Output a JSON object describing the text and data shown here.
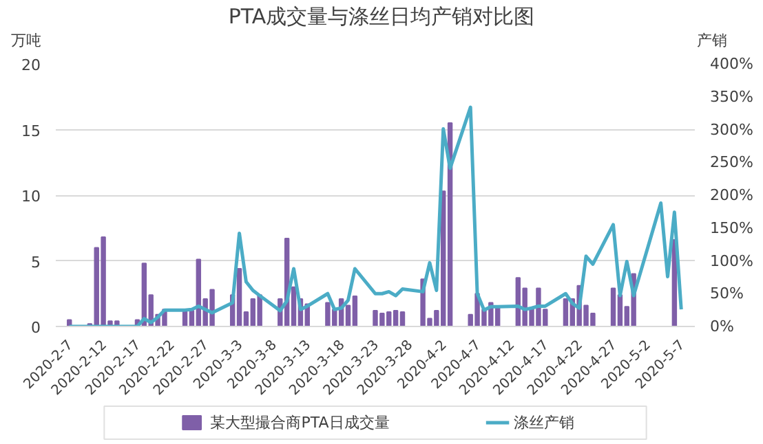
{
  "chart_data": {
    "type": "bar",
    "title": "PTA成交量与涤丝日均产销对比图",
    "ylabel": "万吨",
    "y2label": "产销",
    "x": [
      "2020-02-07",
      "2020-02-10",
      "2020-02-11",
      "2020-02-12",
      "2020-02-13",
      "2020-02-14",
      "2020-02-17",
      "2020-02-18",
      "2020-02-19",
      "2020-02-20",
      "2020-02-21",
      "2020-02-24",
      "2020-02-25",
      "2020-02-26",
      "2020-02-27",
      "2020-02-28",
      "2020-03-02",
      "2020-03-03",
      "2020-03-04",
      "2020-03-05",
      "2020-03-06",
      "2020-03-09",
      "2020-03-10",
      "2020-03-11",
      "2020-03-12",
      "2020-03-13",
      "2020-03-16",
      "2020-03-17",
      "2020-03-18",
      "2020-03-19",
      "2020-03-20",
      "2020-03-23",
      "2020-03-24",
      "2020-03-25",
      "2020-03-26",
      "2020-03-27",
      "2020-03-30",
      "2020-03-31",
      "2020-04-01",
      "2020-04-02",
      "2020-04-03",
      "2020-04-06",
      "2020-04-07",
      "2020-04-08",
      "2020-04-09",
      "2020-04-10",
      "2020-04-13",
      "2020-04-14",
      "2020-04-15",
      "2020-04-16",
      "2020-04-17",
      "2020-04-20",
      "2020-04-21",
      "2020-04-22",
      "2020-04-23",
      "2020-04-24",
      "2020-04-27",
      "2020-04-28",
      "2020-04-29",
      "2020-04-30",
      "2020-05-06"
    ],
    "series": [
      {
        "name": "某大型撮合商PTA日成交量",
        "color": "#7f5fa8",
        "values": [
          0.5,
          0.2,
          6.0,
          6.8,
          0.4,
          0.4,
          0.5,
          4.8,
          2.4,
          0.9,
          1.3,
          1.2,
          1.2,
          5.1,
          2.1,
          2.8,
          2.4,
          4.4,
          1.1,
          2.1,
          2.4,
          2.1,
          6.7,
          3.0,
          2.1,
          1.7,
          1.8,
          1.3,
          2.1,
          1.6,
          2.3,
          1.2,
          1.0,
          1.1,
          1.2,
          1.1,
          3.6,
          0.6,
          1.2,
          10.3,
          15.5,
          0.9,
          2.5,
          1.3,
          1.8,
          1.5,
          3.7,
          2.9,
          1.4,
          2.9,
          1.3,
          2.1,
          2.1,
          3.1,
          1.6,
          1.0,
          2.9,
          2.4,
          1.5,
          4.0,
          6.6
        ]
      },
      {
        "name": "涤丝产销",
        "type": "line",
        "axis": "y2",
        "color": "#4bacc6",
        "x": [
          "2020-02-07",
          "2020-02-10",
          "2020-02-11",
          "2020-02-12",
          "2020-02-13",
          "2020-02-14",
          "2020-02-17",
          "2020-02-18",
          "2020-02-19",
          "2020-02-20",
          "2020-02-21",
          "2020-02-24",
          "2020-02-25",
          "2020-02-26",
          "2020-02-27",
          "2020-02-28",
          "2020-03-02",
          "2020-03-03",
          "2020-03-04",
          "2020-03-05",
          "2020-03-06",
          "2020-03-09",
          "2020-03-10",
          "2020-03-11",
          "2020-03-12",
          "2020-03-13",
          "2020-03-16",
          "2020-03-17",
          "2020-03-18",
          "2020-03-19",
          "2020-03-20",
          "2020-03-23",
          "2020-03-24",
          "2020-03-25",
          "2020-03-26",
          "2020-03-27",
          "2020-03-30",
          "2020-03-31",
          "2020-04-01",
          "2020-04-02",
          "2020-04-03",
          "2020-04-06",
          "2020-04-07",
          "2020-04-08",
          "2020-04-09",
          "2020-04-10",
          "2020-04-13",
          "2020-04-14",
          "2020-04-15",
          "2020-04-16",
          "2020-04-17",
          "2020-04-20",
          "2020-04-21",
          "2020-04-22",
          "2020-04-23",
          "2020-04-24",
          "2020-04-27",
          "2020-04-28",
          "2020-04-29",
          "2020-04-30",
          "2020-05-04",
          "2020-05-05",
          "2020-05-06",
          "2020-05-07"
        ],
        "values": [
          0,
          0,
          0,
          0,
          0,
          0,
          0,
          12,
          6,
          14,
          25,
          25,
          26,
          31,
          26,
          21,
          36,
          142,
          68,
          55,
          47,
          24,
          39,
          88,
          26,
          31,
          50,
          26,
          28,
          40,
          88,
          50,
          50,
          53,
          47,
          57,
          53,
          97,
          55,
          301,
          241,
          334,
          50,
          25,
          30,
          30,
          31,
          26,
          28,
          31,
          31,
          50,
          35,
          28,
          107,
          95,
          155,
          47,
          99,
          47,
          188,
          76,
          174,
          26
        ]
      }
    ],
    "xlim": [
      "2020-02-05",
      "2020-05-09"
    ],
    "xticks": [
      {
        "value": "2020-02-07",
        "label": "2020-2-7"
      },
      {
        "value": "2020-02-12",
        "label": "2020-2-12"
      },
      {
        "value": "2020-02-17",
        "label": "2020-2-17"
      },
      {
        "value": "2020-02-22",
        "label": "2020-2-22"
      },
      {
        "value": "2020-02-27",
        "label": "2020-2-27"
      },
      {
        "value": "2020-03-03",
        "label": "2020-3-3"
      },
      {
        "value": "2020-03-08",
        "label": "2020-3-8"
      },
      {
        "value": "2020-03-13",
        "label": "2020-3-13"
      },
      {
        "value": "2020-03-18",
        "label": "2020-3-18"
      },
      {
        "value": "2020-03-23",
        "label": "2020-3-23"
      },
      {
        "value": "2020-03-28",
        "label": "2020-3-28"
      },
      {
        "value": "2020-04-02",
        "label": "2020-4-2"
      },
      {
        "value": "2020-04-07",
        "label": "2020-4-7"
      },
      {
        "value": "2020-04-12",
        "label": "2020-4-12"
      },
      {
        "value": "2020-04-17",
        "label": "2020-4-17"
      },
      {
        "value": "2020-04-22",
        "label": "2020-4-22"
      },
      {
        "value": "2020-04-27",
        "label": "2020-4-27"
      },
      {
        "value": "2020-05-02",
        "label": "2020-5-2"
      },
      {
        "value": "2020-05-07",
        "label": "2020-5-7"
      }
    ],
    "ylim": [
      0,
      20
    ],
    "yticks": [
      0,
      5,
      10,
      15,
      20
    ],
    "y2lim": [
      0,
      400
    ],
    "y2ticks": [
      {
        "value": 0,
        "label": "0%"
      },
      {
        "value": 50,
        "label": "50%"
      },
      {
        "value": 100,
        "label": "100%"
      },
      {
        "value": 150,
        "label": "150%"
      },
      {
        "value": 200,
        "label": "200%"
      },
      {
        "value": 250,
        "label": "250%"
      },
      {
        "value": 300,
        "label": "300%"
      },
      {
        "value": 350,
        "label": "350%"
      },
      {
        "value": 400,
        "label": "400%"
      }
    ],
    "grid": "y",
    "legend": "bottom"
  }
}
